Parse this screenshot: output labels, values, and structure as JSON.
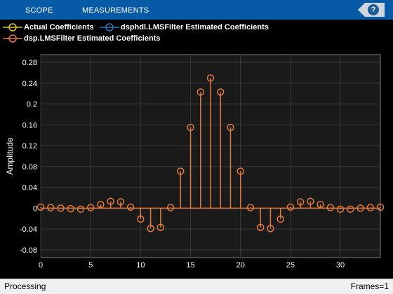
{
  "toolstrip": {
    "tabs": [
      "SCOPE",
      "MEASUREMENTS"
    ],
    "help_label": "?"
  },
  "legend": {
    "items": [
      {
        "label": "Actual Coefficients",
        "color": "#d9c830"
      },
      {
        "label": "dsphdl.LMSFilter Estimated Coefficients",
        "color": "#2d79c3"
      },
      {
        "label": "dsp.LMSFilter Estimated Coefficients",
        "color": "#e07a3f"
      }
    ]
  },
  "status": {
    "left": "Processing",
    "right": "Frames=1"
  },
  "chart_data": {
    "type": "stem",
    "ylabel": "Amplitude",
    "xlabel": "",
    "xlim": [
      0,
      34
    ],
    "ylim": [
      -0.095,
      0.295
    ],
    "x_ticks": [
      0,
      5,
      10,
      15,
      20,
      25,
      30
    ],
    "y_ticks": [
      0.28,
      0.24,
      0.2,
      0.16,
      0.12,
      0.08,
      0.04,
      0,
      -0.04,
      -0.08
    ],
    "y_tick_labels": [
      "0.28",
      "0.24",
      "0.2",
      "0.16",
      "0.12",
      "0.08",
      "0.04",
      "0",
      "-0.04",
      "-0.08"
    ],
    "grid": true,
    "series": [
      {
        "color": "#e07a3f",
        "x": [
          0,
          1,
          2,
          3,
          4,
          5,
          6,
          7,
          8,
          9,
          10,
          11,
          12,
          13,
          14,
          15,
          16,
          17,
          18,
          19,
          20,
          21,
          22,
          23,
          24,
          25,
          26,
          27,
          28,
          29,
          30,
          31,
          32,
          33,
          34
        ],
        "values": [
          0.002,
          0.001,
          0.0,
          -0.001,
          -0.002,
          0.001,
          0.007,
          0.013,
          0.012,
          0.002,
          -0.021,
          -0.039,
          -0.037,
          0.001,
          0.071,
          0.155,
          0.223,
          0.25,
          0.223,
          0.155,
          0.071,
          0.001,
          -0.037,
          -0.039,
          -0.021,
          0.002,
          0.012,
          0.013,
          0.007,
          0.001,
          -0.002,
          -0.002,
          0.0,
          0.001,
          0.002
        ]
      }
    ]
  }
}
